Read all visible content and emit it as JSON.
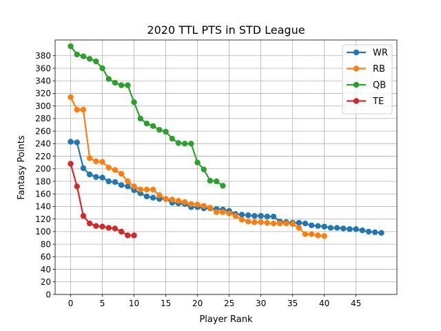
{
  "chart_data": {
    "type": "line",
    "title": "2020 TTL PTS in STD League",
    "xlabel": "Player Rank",
    "ylabel": "Fantasy Points",
    "xlim": [
      -2.45,
      51.45
    ],
    "ylim": [
      0,
      405
    ],
    "x_ticks": [
      0,
      5,
      10,
      15,
      20,
      25,
      30,
      35,
      40,
      45
    ],
    "y_ticks": [
      0,
      20,
      40,
      60,
      80,
      100,
      120,
      140,
      160,
      180,
      200,
      220,
      240,
      260,
      280,
      300,
      320,
      340,
      360,
      380
    ],
    "grid": true,
    "legend_position": "top-right",
    "series": [
      {
        "name": "WR",
        "color": "#1f77b4",
        "values": [
          243,
          242,
          201,
          191,
          187,
          186,
          180,
          179,
          174,
          172,
          166,
          161,
          156,
          154,
          152,
          152,
          146,
          145,
          144,
          139,
          139,
          137,
          137,
          136,
          135,
          133,
          128,
          127,
          126,
          125,
          125,
          124,
          124,
          116,
          115,
          114,
          114,
          113,
          110,
          109,
          108,
          106,
          106,
          105,
          104,
          104,
          102,
          100,
          99,
          98
        ]
      },
      {
        "name": "RB",
        "color": "#ff7f0e",
        "values": [
          314,
          294,
          294,
          217,
          212,
          211,
          202,
          198,
          192,
          180,
          172,
          167,
          167,
          167,
          158,
          152,
          151,
          149,
          147,
          144,
          143,
          141,
          138,
          131,
          131,
          129,
          125,
          119,
          116,
          115,
          115,
          114,
          113,
          113,
          113,
          112,
          106,
          96,
          96,
          94,
          93
        ]
      },
      {
        "name": "QB",
        "color": "#2ca02c",
        "values": [
          395,
          382,
          379,
          375,
          371,
          360,
          343,
          337,
          333,
          333,
          306,
          280,
          272,
          268,
          262,
          259,
          248,
          241,
          240,
          240,
          210,
          199,
          181,
          180,
          173
        ]
      },
      {
        "name": "TE",
        "color": "#d62728",
        "values": [
          208,
          172,
          125,
          113,
          109,
          108,
          106,
          105,
          100,
          94,
          94
        ]
      }
    ]
  }
}
